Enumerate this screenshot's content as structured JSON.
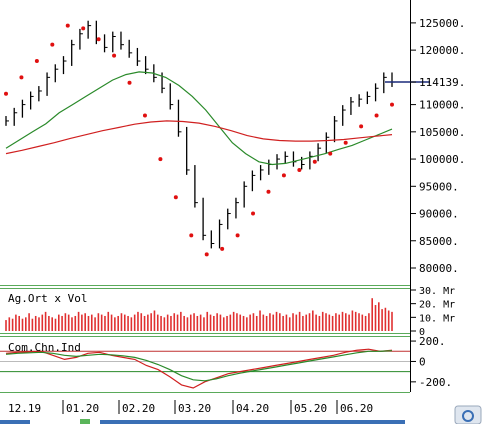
{
  "chart_data": [
    {
      "type": "line",
      "panel": "price",
      "title": "",
      "ylim": [
        80000,
        127000
      ],
      "y_ticks": [
        "125000.",
        "120000.",
        "114139.",
        "110000.",
        "105000.",
        "100000.",
        "95000.",
        "90000.",
        "85000.",
        "80000."
      ],
      "y_tick_values": [
        125000,
        120000,
        114139,
        110000,
        105000,
        100000,
        95000,
        90000,
        85000,
        80000
      ],
      "last_price": 114139,
      "series": [
        {
          "values": [
            107000,
            108500,
            110000,
            111500,
            112500,
            115000,
            116500,
            118000,
            121000,
            123000,
            124500,
            122000,
            120500,
            122500,
            121000,
            119500,
            118000,
            116500,
            115000,
            113000,
            110000,
            105000,
            98000,
            92000,
            86000,
            84500,
            88000,
            90000,
            92000,
            95000,
            97000,
            98000,
            99000,
            100000,
            100500,
            99500,
            99000,
            100500,
            102000,
            104000,
            107000,
            109000,
            110500,
            111000,
            111500,
            113000,
            115000,
            114139
          ]
        },
        {
          "name": "",
          "values": [
            102000,
            103500,
            105000,
            106500,
            108500,
            110000,
            111500,
            113000,
            114500,
            115500,
            116000,
            115800,
            115000,
            113500,
            111500,
            109000,
            106000,
            103000,
            101000,
            99500,
            99000,
            99200,
            99800,
            100400,
            101000,
            101800,
            102500,
            103500,
            104500,
            105500
          ]
        },
        {
          "name": "",
          "values": [
            101000,
            101600,
            102300,
            103000,
            103800,
            104500,
            105200,
            105800,
            106400,
            106800,
            107000,
            106900,
            106600,
            106000,
            105200,
            104300,
            103700,
            103400,
            103300,
            103300,
            103400,
            103600,
            103900,
            104200,
            104500
          ]
        },
        {
          "name": "",
          "values": [
            112000,
            115000,
            118000,
            121000,
            124500,
            124000,
            122000,
            119000,
            114000,
            108000,
            100000,
            93000,
            86000,
            82500,
            83500,
            86000,
            90000,
            94000,
            97000,
            98000,
            99500,
            101000,
            103000,
            106000,
            108000,
            110000
          ]
        }
      ],
      "x_labels": [
        "12.19",
        "01.20",
        "02.20",
        "03.20",
        "04.20",
        "05.20",
        "06.20"
      ]
    },
    {
      "type": "bar",
      "panel": "volume",
      "title": "Ag.Ort x Vol",
      "y_ticks": [
        "30. Mr",
        "20. Mr",
        "10. Mr",
        "0"
      ],
      "y_tick_values": [
        30,
        20,
        10,
        0
      ],
      "values": [
        8,
        10,
        9,
        12,
        11,
        9,
        10,
        13,
        9,
        11,
        10,
        12,
        14,
        11,
        10,
        9,
        12,
        11,
        13,
        12,
        10,
        11,
        14,
        12,
        13,
        11,
        12,
        10,
        13,
        12,
        11,
        14,
        12,
        10,
        11,
        13,
        12,
        11,
        10,
        12,
        14,
        13,
        11,
        12,
        13,
        15,
        12,
        11,
        10,
        12,
        11,
        13,
        12,
        14,
        11,
        10,
        12,
        13,
        11,
        12,
        10,
        14,
        12,
        11,
        13,
        12,
        10,
        11,
        12,
        14,
        13,
        12,
        11,
        10,
        12,
        13,
        11,
        15,
        12,
        11,
        13,
        12,
        14,
        13,
        11,
        12,
        10,
        13,
        12,
        14,
        11,
        12,
        13,
        15,
        12,
        11,
        14,
        13,
        12,
        11,
        13,
        12,
        14,
        13,
        12,
        15,
        14,
        13,
        12,
        11,
        13,
        24,
        19,
        21,
        16,
        17,
        15,
        14
      ],
      "ylim": [
        0,
        30
      ]
    },
    {
      "type": "line",
      "panel": "oscillator",
      "title": "Com.Chn.Ind",
      "y_ticks": [
        "200.",
        "0",
        "-200."
      ],
      "y_tick_values": [
        200,
        0,
        -200
      ],
      "ylim": [
        -280,
        230
      ],
      "series": [
        {
          "values": [
            80,
            90,
            95,
            100,
            60,
            20,
            40,
            80,
            90,
            60,
            40,
            20,
            -40,
            -80,
            -150,
            -230,
            -260,
            -200,
            -160,
            -120,
            -100,
            -80,
            -60,
            -40,
            -20,
            0,
            20,
            40,
            60,
            90,
            110,
            120,
            100,
            110
          ]
        },
        {
          "values": [
            70,
            80,
            85,
            90,
            80,
            60,
            50,
            60,
            70,
            65,
            55,
            40,
            10,
            -30,
            -80,
            -140,
            -180,
            -190,
            -170,
            -140,
            -115,
            -95,
            -75,
            -55,
            -35,
            -15,
            5,
            25,
            45,
            65,
            85,
            100,
            100,
            105
          ]
        }
      ]
    }
  ]
}
